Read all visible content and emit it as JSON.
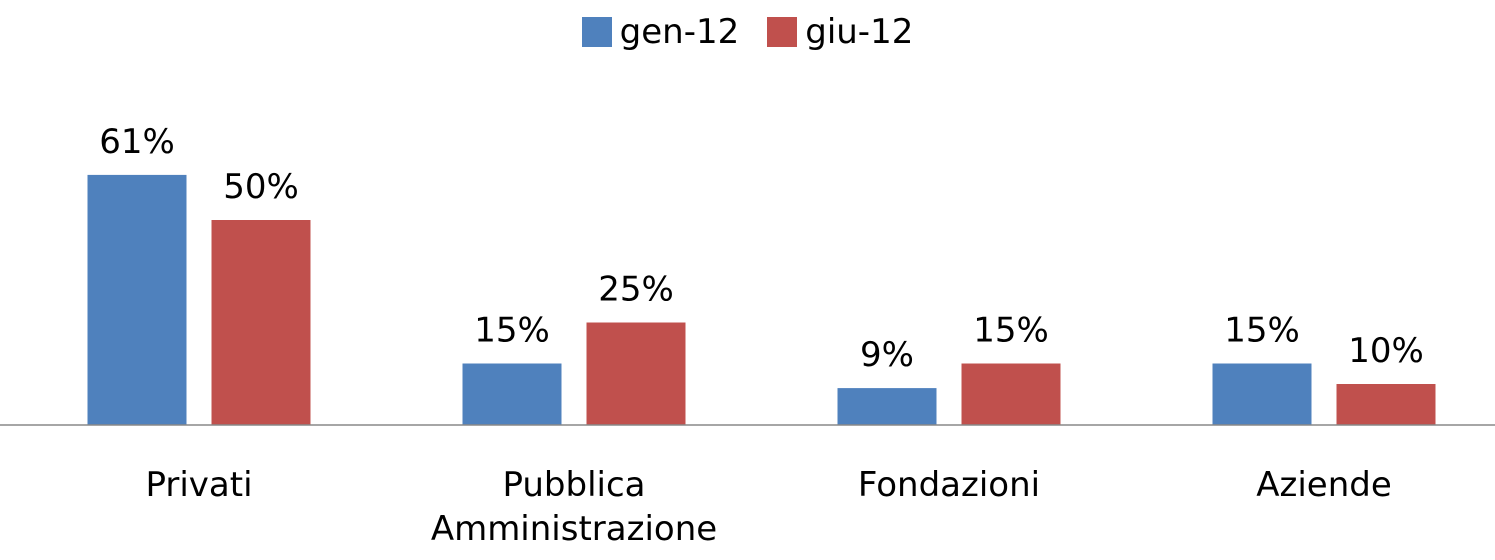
{
  "chart_data": {
    "type": "bar",
    "categories": [
      "Privati",
      "Pubblica Amministrazione",
      "Fondazioni",
      "Aziende"
    ],
    "series": [
      {
        "name": "gen-12",
        "color": "#4f81bd",
        "values": [
          61,
          15,
          9,
          15
        ],
        "value_labels": [
          "61%",
          "15%",
          "9%",
          "15%"
        ]
      },
      {
        "name": "giu-12",
        "color": "#c0504d",
        "values": [
          50,
          25,
          15,
          10
        ],
        "value_labels": [
          "50%",
          "25%",
          "15%",
          "10%"
        ]
      }
    ],
    "legend": "top"
  }
}
